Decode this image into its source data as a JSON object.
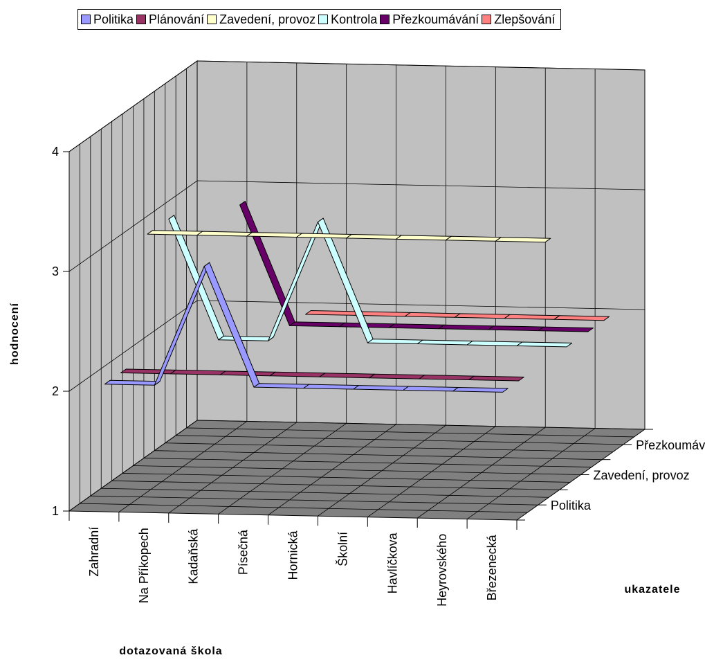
{
  "chart_data": {
    "type": "line-3d",
    "title": "",
    "xlabel": "dotazovaná škola",
    "ylabel": "hodnocení",
    "zlabel": "ukazatele",
    "categories": [
      "Zahradní",
      "Na Příkopech",
      "Kadaňská",
      "Písečná",
      "Hornická",
      "Školní",
      "Havlíčkova",
      "Heyrovského",
      "Březenecká"
    ],
    "depth_tick_labels": [
      "Politika",
      "Zavedení, provoz",
      "Přezkoumávání"
    ],
    "ylim": [
      1,
      4
    ],
    "yticks": [
      1,
      2,
      3,
      4
    ],
    "legend_position": "top",
    "series": [
      {
        "name": "Politika",
        "color": "#9999FF",
        "values": [
          2,
          2,
          3,
          2,
          2,
          2,
          2,
          2,
          2
        ]
      },
      {
        "name": "Plánování",
        "color": "#993366",
        "values": [
          2,
          2,
          2,
          2,
          2,
          2,
          2,
          2,
          2
        ]
      },
      {
        "name": "Zavedení,  provoz",
        "color": "#FFFFCC",
        "values": [
          3,
          3,
          3,
          3,
          3,
          3,
          3,
          3,
          3
        ]
      },
      {
        "name": "Kontrola",
        "color": "#CCFFFF",
        "values": [
          3,
          2,
          2,
          3,
          2,
          2,
          2,
          2,
          2
        ]
      },
      {
        "name": "Přezkoumávání",
        "color": "#660066",
        "values": [
          null,
          3,
          2,
          2,
          2,
          2,
          2,
          2,
          2
        ]
      },
      {
        "name": "Zlepšování",
        "color": "#FF8080",
        "values": [
          null,
          null,
          2,
          2,
          2,
          2,
          2,
          2,
          2
        ]
      }
    ]
  }
}
